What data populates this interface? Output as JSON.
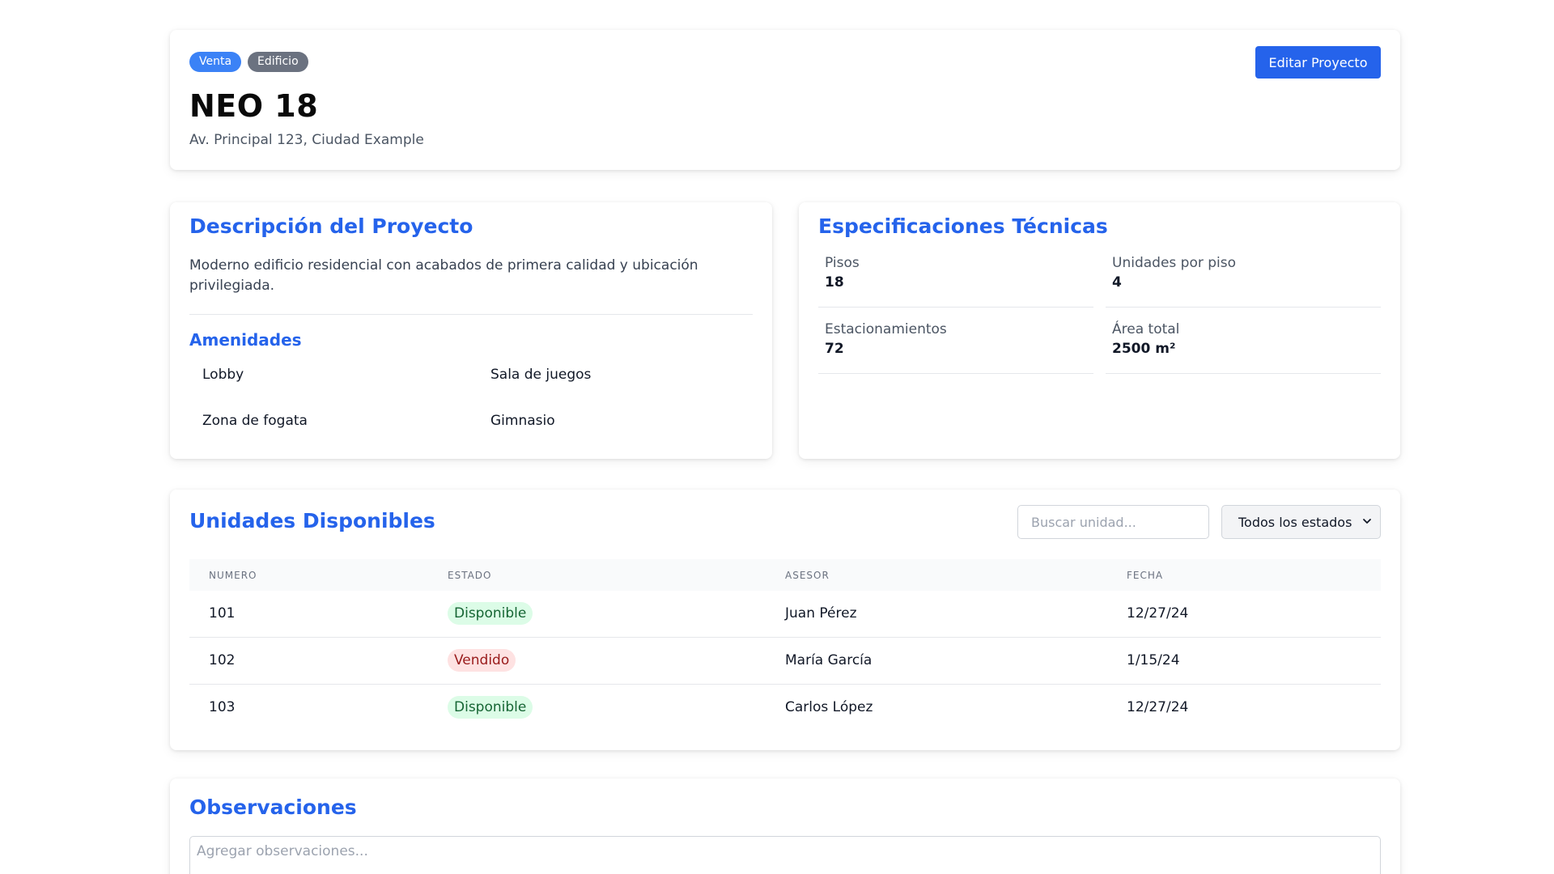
{
  "header": {
    "badges": [
      "Venta",
      "Edificio"
    ],
    "title": "NEO 18",
    "address": "Av. Principal 123, Ciudad Example",
    "edit_button": "Editar Proyecto"
  },
  "description": {
    "title": "Descripción del Proyecto",
    "text": "Moderno edificio residencial con acabados de primera calidad y ubicación privilegiada.",
    "amenities_title": "Amenidades",
    "amenities": [
      "Lobby",
      "Sala de juegos",
      "Zona de fogata",
      "Gimnasio"
    ]
  },
  "specs": {
    "title": "Especificaciones Técnicas",
    "items": [
      {
        "label": "Pisos",
        "value": "18"
      },
      {
        "label": "Unidades por piso",
        "value": "4"
      },
      {
        "label": "Estacionamientos",
        "value": "72"
      },
      {
        "label": "Área total",
        "value": "2500 m²"
      }
    ]
  },
  "units": {
    "title": "Unidades Disponibles",
    "search_placeholder": "Buscar unidad...",
    "status_filter": "Todos los estados",
    "columns": [
      "NUMERO",
      "ESTADO",
      "ASESOR",
      "FECHA"
    ],
    "rows": [
      {
        "numero": "101",
        "estado": "Disponible",
        "asesor": "Juan Pérez",
        "fecha": "12/27/24"
      },
      {
        "numero": "102",
        "estado": "Vendido",
        "asesor": "María García",
        "fecha": "1/15/24"
      },
      {
        "numero": "103",
        "estado": "Disponible",
        "asesor": "Carlos López",
        "fecha": "12/27/24"
      }
    ]
  },
  "observations": {
    "title": "Observaciones",
    "placeholder": "Agregar observaciones..."
  },
  "colors": {
    "accent": "#2563eb",
    "badge_sale": "#3b82f6",
    "badge_type": "#6b7280",
    "status_available_bg": "#dcfce7",
    "status_available_text": "#166534",
    "status_sold_bg": "#fee2e2",
    "status_sold_text": "#991b1b"
  }
}
